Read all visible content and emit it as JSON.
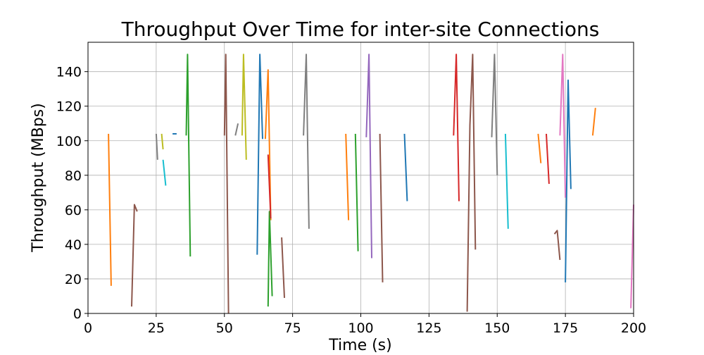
{
  "chart_data": {
    "type": "line",
    "title": "Throughput Over Time for inter-site Connections",
    "xlabel": "Time (s)",
    "ylabel": "Throughput (MBps)",
    "xlim": [
      0,
      200
    ],
    "ylim": [
      0,
      157
    ],
    "xticks": [
      0,
      25,
      50,
      75,
      100,
      125,
      150,
      175,
      200
    ],
    "yticks": [
      0,
      20,
      40,
      60,
      80,
      100,
      120,
      140
    ],
    "grid": true,
    "legend": "none",
    "series": [
      {
        "color": "#ff7f0e",
        "points": [
          [
            7.5,
            104
          ],
          [
            8.5,
            16
          ]
        ]
      },
      {
        "color": "#8c564b",
        "points": [
          [
            16,
            4
          ],
          [
            17,
            63
          ],
          [
            18,
            59
          ]
        ]
      },
      {
        "color": "#7f7f7f",
        "points": [
          [
            25,
            104
          ],
          [
            25.5,
            89
          ]
        ]
      },
      {
        "color": "#bcbd22",
        "points": [
          [
            27,
            104
          ],
          [
            27.5,
            95
          ]
        ]
      },
      {
        "color": "#17becf",
        "points": [
          [
            27.5,
            89
          ],
          [
            28.5,
            74
          ]
        ]
      },
      {
        "color": "#1f77b4",
        "points": [
          [
            31,
            104
          ],
          [
            32.5,
            104
          ]
        ]
      },
      {
        "color": "#2ca02c",
        "points": [
          [
            36,
            103
          ],
          [
            36.5,
            150
          ],
          [
            37.5,
            33
          ]
        ]
      },
      {
        "color": "#8c564b",
        "points": [
          [
            50,
            103
          ],
          [
            50.5,
            150
          ],
          [
            51.5,
            0
          ]
        ]
      },
      {
        "color": "#7f7f7f",
        "points": [
          [
            54,
            103
          ],
          [
            55,
            110
          ]
        ]
      },
      {
        "color": "#bcbd22",
        "points": [
          [
            56.5,
            103
          ],
          [
            57,
            150
          ],
          [
            58,
            89
          ]
        ]
      },
      {
        "color": "#1f77b4",
        "points": [
          [
            62,
            34
          ],
          [
            63,
            150
          ],
          [
            64,
            101
          ]
        ]
      },
      {
        "color": "#ff7f0e",
        "points": [
          [
            65,
            101
          ],
          [
            66,
            141
          ],
          [
            67,
            54
          ]
        ]
      },
      {
        "color": "#2ca02c",
        "points": [
          [
            66,
            4
          ],
          [
            66.5,
            59
          ],
          [
            67.5,
            10
          ]
        ]
      },
      {
        "color": "#d62728",
        "points": [
          [
            66,
            92
          ],
          [
            67,
            55
          ]
        ]
      },
      {
        "color": "#8c564b",
        "points": [
          [
            71,
            44
          ],
          [
            72,
            9
          ]
        ]
      },
      {
        "color": "#7f7f7f",
        "points": [
          [
            79,
            103
          ],
          [
            80,
            150
          ],
          [
            81,
            49
          ]
        ]
      },
      {
        "color": "#ff7f0e",
        "points": [
          [
            94.5,
            104
          ],
          [
            95.5,
            54
          ]
        ]
      },
      {
        "color": "#2ca02c",
        "points": [
          [
            98,
            104
          ],
          [
            99,
            36
          ]
        ]
      },
      {
        "color": "#9467bd",
        "points": [
          [
            102,
            102
          ],
          [
            103,
            150
          ],
          [
            104,
            32
          ]
        ]
      },
      {
        "color": "#8c564b",
        "points": [
          [
            107,
            104
          ],
          [
            108,
            18
          ]
        ]
      },
      {
        "color": "#1f77b4",
        "points": [
          [
            116,
            104
          ],
          [
            117,
            65
          ]
        ]
      },
      {
        "color": "#d62728",
        "points": [
          [
            134,
            103
          ],
          [
            135,
            150
          ],
          [
            136,
            65
          ]
        ]
      },
      {
        "color": "#8c564b",
        "points": [
          [
            139,
            1
          ],
          [
            140,
            109
          ],
          [
            141,
            150
          ],
          [
            142,
            37
          ]
        ]
      },
      {
        "color": "#7f7f7f",
        "points": [
          [
            148,
            102
          ],
          [
            149,
            150
          ],
          [
            150,
            80
          ]
        ]
      },
      {
        "color": "#17becf",
        "points": [
          [
            153,
            104
          ],
          [
            154,
            49
          ]
        ]
      },
      {
        "color": "#ff7f0e",
        "points": [
          [
            165,
            104
          ],
          [
            166,
            87
          ]
        ]
      },
      {
        "color": "#d62728",
        "points": [
          [
            168,
            104
          ],
          [
            169,
            75
          ]
        ]
      },
      {
        "color": "#8c564b",
        "points": [
          [
            171,
            46
          ],
          [
            172,
            48
          ],
          [
            173,
            31
          ]
        ]
      },
      {
        "color": "#e377c2",
        "points": [
          [
            173,
            103
          ],
          [
            174,
            150
          ],
          [
            175,
            67
          ]
        ]
      },
      {
        "color": "#1f77b4",
        "points": [
          [
            175,
            18
          ],
          [
            176,
            135
          ],
          [
            177,
            72
          ]
        ]
      },
      {
        "color": "#ff7f0e",
        "points": [
          [
            185,
            103
          ],
          [
            186,
            119
          ]
        ]
      },
      {
        "color": "#e377c2",
        "points": [
          [
            199,
            3
          ],
          [
            200,
            63
          ]
        ]
      }
    ]
  }
}
